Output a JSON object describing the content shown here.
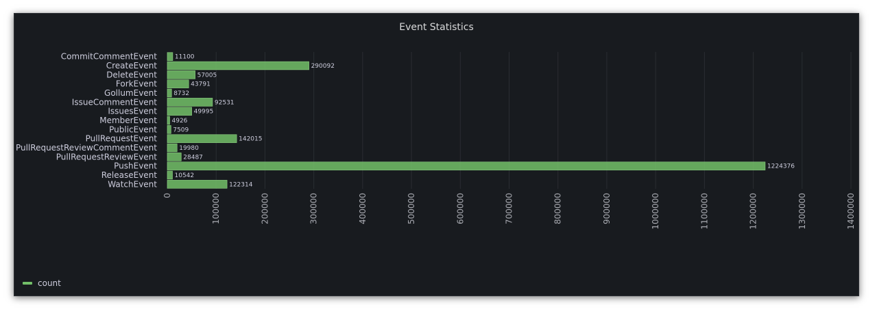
{
  "panel": {
    "title": "Event Statistics"
  },
  "legend": {
    "items": [
      {
        "label": "count",
        "color": "#73bf69"
      }
    ]
  },
  "chart_data": {
    "type": "bar",
    "orientation": "horizontal",
    "title": "Event Statistics",
    "categories": [
      "CommitCommentEvent",
      "CreateEvent",
      "DeleteEvent",
      "ForkEvent",
      "GollumEvent",
      "IssueCommentEvent",
      "IssuesEvent",
      "MemberEvent",
      "PublicEvent",
      "PullRequestEvent",
      "PullRequestReviewCommentEvent",
      "PullRequestReviewEvent",
      "PushEvent",
      "ReleaseEvent",
      "WatchEvent"
    ],
    "series": [
      {
        "name": "count",
        "color": "#73bf69",
        "values": [
          11100,
          290092,
          57005,
          43791,
          8732,
          92531,
          49995,
          4926,
          7509,
          142015,
          19980,
          28487,
          1224376,
          10542,
          122314
        ]
      }
    ],
    "x_ticks": [
      0,
      100000,
      200000,
      300000,
      400000,
      500000,
      600000,
      700000,
      800000,
      900000,
      1000000,
      1100000,
      1200000,
      1300000,
      1400000
    ],
    "xlim": [
      0,
      1400000
    ],
    "grid": true,
    "legend_position": "bottom-left"
  }
}
